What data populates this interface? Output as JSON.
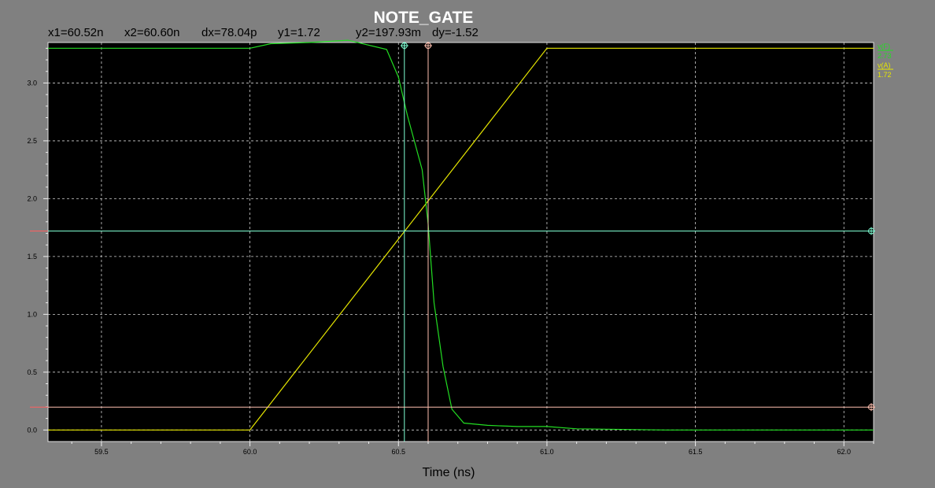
{
  "title": "NOTE_GATE",
  "cursor_readout": {
    "x1": "x1=60.52n",
    "x2": "x2=60.60n",
    "dx": "dx=78.04p",
    "y1": "y1=1.72",
    "y2": "y2=197.93m",
    "dy": "dy=-1.52"
  },
  "legend": [
    {
      "name": "v(F)",
      "value": "2.73",
      "color": "#22dd22"
    },
    {
      "name": "v(A)",
      "value": "1.72",
      "color": "#e6e600"
    }
  ],
  "colors": {
    "background": "#000000",
    "frame": "#808080",
    "grid": "#d0d0d0",
    "cursor1": "#7fffd4",
    "cursor2": "#ffc0b0"
  },
  "chart_data": {
    "type": "line",
    "title": "NOTE_GATE",
    "xlabel": "Time (ns)",
    "ylabel": "",
    "xlim": [
      59.32,
      62.1
    ],
    "ylim": [
      -0.1,
      3.35
    ],
    "x_ticks": [
      "59.5",
      "60.0",
      "60.5",
      "61.0",
      "61.5",
      "62.0"
    ],
    "y_ticks": [
      "0.0",
      "0.5",
      "1.0",
      "1.5",
      "2.0",
      "2.5",
      "3.0"
    ],
    "grid": true,
    "legend_position": "right",
    "series": [
      {
        "name": "v(F)",
        "color": "#22dd22",
        "x": [
          59.32,
          60.0,
          60.07,
          60.2,
          60.33,
          60.46,
          60.5,
          60.53,
          60.58,
          60.6,
          60.62,
          60.65,
          60.68,
          60.72,
          60.8,
          60.9,
          61.0,
          61.1,
          61.4,
          62.1
        ],
        "y": [
          3.3,
          3.3,
          3.34,
          3.35,
          3.37,
          3.29,
          3.05,
          2.72,
          2.25,
          1.78,
          1.1,
          0.55,
          0.18,
          0.06,
          0.04,
          0.03,
          0.03,
          0.01,
          0.0,
          0.0
        ]
      },
      {
        "name": "v(A)",
        "color": "#e6e600",
        "x": [
          59.32,
          60.0,
          61.0,
          62.1
        ],
        "y": [
          0.0,
          0.0,
          3.3,
          3.3
        ]
      }
    ],
    "cursors": {
      "x1": 60.52,
      "x2": 60.6,
      "y1": 1.72,
      "y2": 0.19793
    }
  }
}
